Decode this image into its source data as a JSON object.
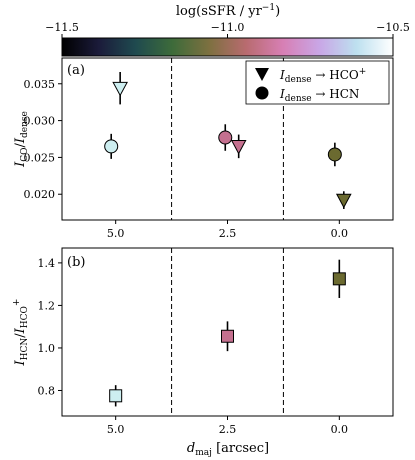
{
  "colorbar": {
    "label": "log(sSFR / yr$^{-1}$)",
    "label_display": "log(sSFR / yr",
    "label_sup": "−1",
    "label_close": ")",
    "range": [
      -11.5,
      -10.5
    ],
    "ticks": [
      {
        "value": -11.5,
        "text": "−11.5"
      },
      {
        "value": -11.0,
        "text": "−11.0"
      },
      {
        "value": -10.5,
        "text": "−10.5"
      }
    ],
    "colormap": "cubehelix-like",
    "stops": [
      "#000000",
      "#1b1b3a",
      "#1f4a4f",
      "#3d6b3a",
      "#7d7040",
      "#b86b6f",
      "#d77fb4",
      "#c9a6e6",
      "#bde0ef",
      "#ffffff"
    ]
  },
  "chart_data": [
    {
      "type": "scatter",
      "panel_label": "(a)",
      "ylabel_main": "I",
      "ylabel_sub1": "CO",
      "ylabel_slash": "/",
      "ylabel_sub2": "dense",
      "xlim": [
        6.2,
        -1.2
      ],
      "ylim": [
        0.0165,
        0.0385
      ],
      "xticks": [
        {
          "value": 5.0,
          "text": "5.0"
        },
        {
          "value": 2.5,
          "text": "2.5"
        },
        {
          "value": 0.0,
          "text": "0.0"
        }
      ],
      "yticks": [
        {
          "value": 0.02,
          "text": "0.020"
        },
        {
          "value": 0.025,
          "text": "0.025"
        },
        {
          "value": 0.03,
          "text": "0.030"
        },
        {
          "value": 0.035,
          "text": "0.035"
        }
      ],
      "vlines": [
        3.75,
        1.25
      ],
      "legend": {
        "placement": "top-right",
        "entries": [
          {
            "marker": "triangle",
            "text_main": "I",
            "text_sub": "dense",
            "text_arrow": " → HCO",
            "text_sup": "+"
          },
          {
            "marker": "circle",
            "text_main": "I",
            "text_sub": "dense",
            "text_arrow": " → HCN",
            "text_sup": ""
          }
        ]
      },
      "series": [
        {
          "marker": "triangle",
          "points": [
            {
              "x": 4.9,
              "y": 0.0344,
              "yerr": 0.0022,
              "logssfr": -10.62,
              "color": "#cdeef0"
            },
            {
              "x": 2.25,
              "y": 0.0265,
              "yerr": 0.0016,
              "logssfr": -10.93,
              "color": "#c4708f"
            },
            {
              "x": -0.1,
              "y": 0.0192,
              "yerr": 0.0012,
              "logssfr": -11.13,
              "color": "#6b6a30"
            }
          ]
        },
        {
          "marker": "circle",
          "points": [
            {
              "x": 5.1,
              "y": 0.0265,
              "yerr": 0.0017,
              "logssfr": -10.62,
              "color": "#cdeef0"
            },
            {
              "x": 2.55,
              "y": 0.0277,
              "yerr": 0.0018,
              "logssfr": -10.93,
              "color": "#c4708f"
            },
            {
              "x": 0.1,
              "y": 0.0254,
              "yerr": 0.0016,
              "logssfr": -11.13,
              "color": "#6b6a30"
            }
          ]
        }
      ]
    },
    {
      "type": "scatter",
      "panel_label": "(b)",
      "ylabel_main": "I",
      "ylabel_sub1": "HCN",
      "ylabel_slash": "/",
      "ylabel_sub2": "HCO",
      "ylabel_sup2": "+",
      "xlabel_main": "d",
      "xlabel_sub": "maj",
      "xlabel_unit": "[arcsec]",
      "xlim": [
        6.2,
        -1.2
      ],
      "ylim": [
        0.68,
        1.47
      ],
      "xticks": [
        {
          "value": 5.0,
          "text": "5.0"
        },
        {
          "value": 2.5,
          "text": "2.5"
        },
        {
          "value": 0.0,
          "text": "0.0"
        }
      ],
      "yticks": [
        {
          "value": 0.8,
          "text": "0.8"
        },
        {
          "value": 1.0,
          "text": "1.0"
        },
        {
          "value": 1.2,
          "text": "1.2"
        },
        {
          "value": 1.4,
          "text": "1.4"
        }
      ],
      "vlines": [
        3.75,
        1.25
      ],
      "series": [
        {
          "marker": "square",
          "points": [
            {
              "x": 5.0,
              "y": 0.775,
              "yerr": 0.05,
              "logssfr": -10.62,
              "color": "#cdeef0"
            },
            {
              "x": 2.5,
              "y": 1.055,
              "yerr": 0.07,
              "logssfr": -10.93,
              "color": "#c4708f"
            },
            {
              "x": 0.0,
              "y": 1.325,
              "yerr": 0.09,
              "logssfr": -11.13,
              "color": "#6b6a30"
            }
          ]
        }
      ]
    }
  ]
}
